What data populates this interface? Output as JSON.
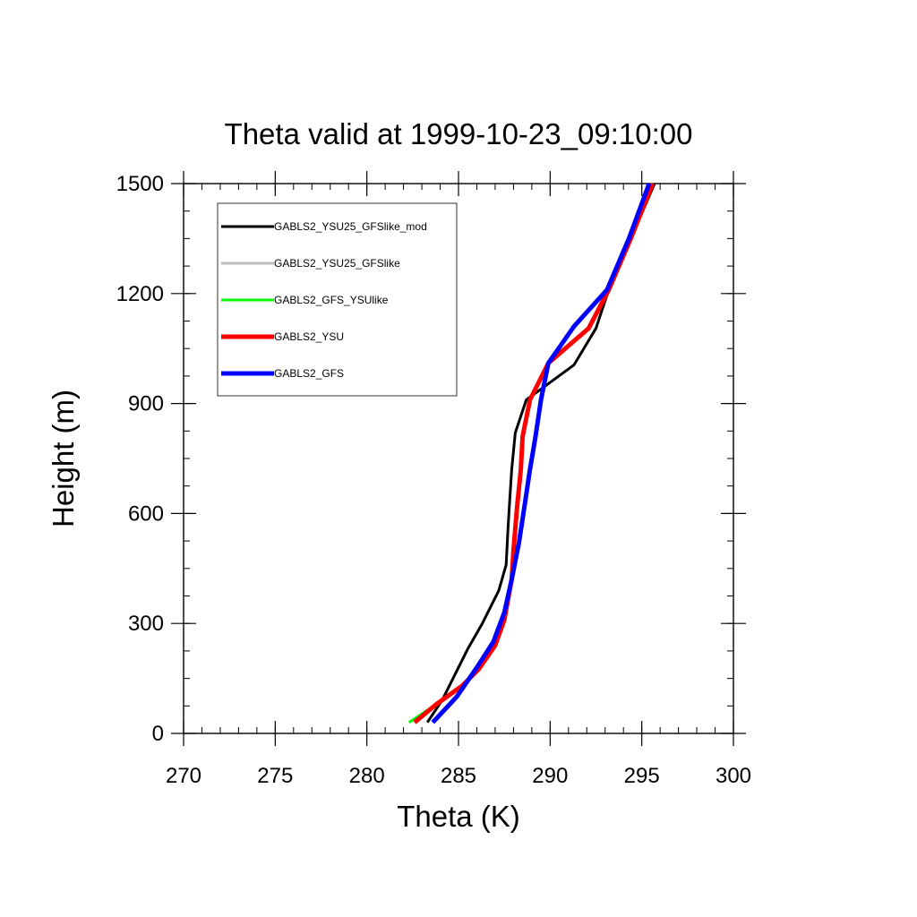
{
  "chart_data": {
    "type": "line",
    "title": "Theta valid at 1999-10-23_09:10:00",
    "xlabel": "Theta (K)",
    "ylabel": "Height (m)",
    "xlim": [
      270,
      300
    ],
    "ylim": [
      0,
      1500
    ],
    "xticks": [
      "270",
      "275",
      "280",
      "285",
      "290",
      "295",
      "300"
    ],
    "yticks": [
      "0",
      "300",
      "600",
      "900",
      "1200",
      "1500"
    ],
    "grid": false,
    "legend_position": "top-left",
    "series": [
      {
        "name": "GABLS2_YSU25_GFSlike_mod",
        "color": "#000000",
        "width": 3,
        "points": [
          [
            283.3,
            30
          ],
          [
            284.1,
            90
          ],
          [
            284.7,
            150
          ],
          [
            285.5,
            230
          ],
          [
            286.3,
            300
          ],
          [
            287.2,
            390
          ],
          [
            287.6,
            460
          ],
          [
            287.7,
            560
          ],
          [
            287.8,
            640
          ],
          [
            287.9,
            720
          ],
          [
            288.1,
            820
          ],
          [
            288.7,
            910
          ],
          [
            291.3,
            1005
          ],
          [
            292.5,
            1105
          ],
          [
            293.2,
            1210
          ],
          [
            294.4,
            1350
          ],
          [
            295.7,
            1500
          ]
        ]
      },
      {
        "name": "GABLS2_YSU25_GFSlike",
        "color": "#bdbdbd",
        "width": 3,
        "points": [
          [
            282.6,
            30
          ],
          [
            283.8,
            80
          ],
          [
            285.2,
            130
          ],
          [
            286.1,
            175
          ],
          [
            287.0,
            240
          ],
          [
            287.5,
            310
          ],
          [
            287.9,
            420
          ],
          [
            288.0,
            500
          ],
          [
            288.2,
            620
          ],
          [
            288.4,
            720
          ],
          [
            288.5,
            810
          ],
          [
            288.9,
            910
          ],
          [
            289.9,
            1010
          ],
          [
            292.1,
            1105
          ],
          [
            293.2,
            1210
          ],
          [
            294.4,
            1350
          ],
          [
            295.6,
            1500
          ]
        ]
      },
      {
        "name": "GABLS2_GFS_YSUlike",
        "color": "#00ff00",
        "width": 3,
        "points": [
          [
            282.3,
            30
          ],
          [
            283.8,
            80
          ],
          [
            285.2,
            130
          ],
          [
            286.1,
            175
          ],
          [
            287.0,
            240
          ],
          [
            287.5,
            310
          ],
          [
            287.9,
            420
          ],
          [
            288.0,
            500
          ],
          [
            288.2,
            620
          ],
          [
            288.4,
            720
          ],
          [
            288.5,
            810
          ],
          [
            288.9,
            910
          ],
          [
            289.9,
            1010
          ],
          [
            292.1,
            1105
          ],
          [
            293.2,
            1210
          ],
          [
            294.4,
            1350
          ],
          [
            295.6,
            1500
          ]
        ]
      },
      {
        "name": "GABLS2_YSU",
        "color": "#ff0000",
        "width": 5,
        "points": [
          [
            282.6,
            30
          ],
          [
            283.8,
            80
          ],
          [
            285.2,
            130
          ],
          [
            286.1,
            175
          ],
          [
            287.0,
            240
          ],
          [
            287.5,
            310
          ],
          [
            287.9,
            420
          ],
          [
            288.0,
            500
          ],
          [
            288.2,
            620
          ],
          [
            288.4,
            720
          ],
          [
            288.5,
            810
          ],
          [
            288.9,
            910
          ],
          [
            289.9,
            1010
          ],
          [
            292.1,
            1105
          ],
          [
            293.2,
            1210
          ],
          [
            294.4,
            1350
          ],
          [
            295.6,
            1500
          ]
        ]
      },
      {
        "name": "GABLS2_GFS",
        "color": "#0000ff",
        "width": 5,
        "points": [
          [
            283.6,
            30
          ],
          [
            284.9,
            100
          ],
          [
            286.0,
            180
          ],
          [
            286.9,
            250
          ],
          [
            287.5,
            330
          ],
          [
            287.9,
            420
          ],
          [
            288.3,
            520
          ],
          [
            288.6,
            620
          ],
          [
            288.9,
            720
          ],
          [
            289.2,
            810
          ],
          [
            289.5,
            910
          ],
          [
            289.9,
            1010
          ],
          [
            291.3,
            1110
          ],
          [
            293.1,
            1210
          ],
          [
            294.3,
            1350
          ],
          [
            295.4,
            1500
          ]
        ]
      }
    ]
  }
}
